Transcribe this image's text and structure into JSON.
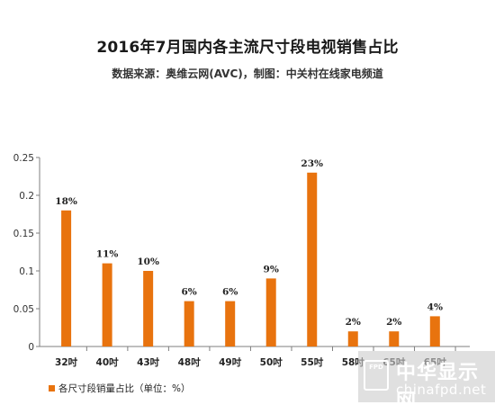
{
  "chart_data": {
    "type": "bar",
    "title": "2016年7月国内各主流尺寸段电视销售占比",
    "subtitle": "数据来源：奥维云网(AVC)，制图：中关村在线家电频道",
    "categories": [
      "32吋",
      "40吋",
      "43吋",
      "48吋",
      "49吋",
      "50吋",
      "55吋",
      "58吋",
      "65吋",
      "65吋"
    ],
    "series": [
      {
        "name": "各尺寸段销量占比（单位：%）",
        "values": [
          0.18,
          0.11,
          0.1,
          0.06,
          0.06,
          0.09,
          0.23,
          0.02,
          0.02,
          0.04
        ],
        "data_labels": [
          "18%",
          "11%",
          "10%",
          "6%",
          "6%",
          "9%",
          "23%",
          "2%",
          "2%",
          "4%"
        ],
        "color": "#e8730e"
      }
    ],
    "ylim": [
      0,
      0.25
    ],
    "yticks": [
      0,
      0.05,
      0.1,
      0.15,
      0.2,
      0.25
    ],
    "ytick_labels": [
      "0",
      "0.05",
      "0.1",
      "0.15",
      "0.2",
      "0.25"
    ],
    "grid": false,
    "legend": "bottom-left"
  },
  "watermark": {
    "logo_text": "FPD",
    "brand": "中华显示网",
    "url": "chinafpd.net"
  }
}
